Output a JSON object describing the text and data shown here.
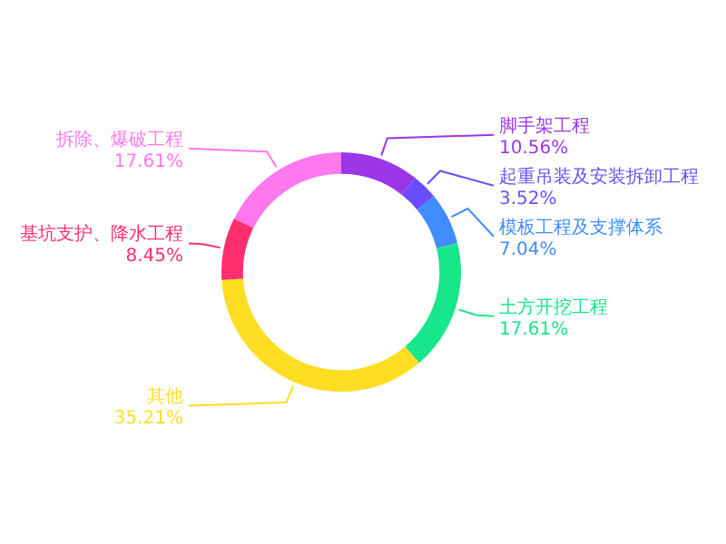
{
  "chart_data": {
    "type": "donut",
    "categories": [
      "脚手架工程",
      "起重吊装及安装拆卸工程",
      "模板工程及支撑体系",
      "土方开挖工程",
      "其他",
      "基坑支护、降水工程",
      "拆除、爆破工程"
    ],
    "values": [
      10.56,
      3.52,
      7.04,
      17.61,
      35.21,
      8.45,
      17.61
    ],
    "colors": [
      "#9b35e8",
      "#6b4dff",
      "#3f8cff",
      "#17e68b",
      "#ffdd22",
      "#ff2e6e",
      "#ff78ee"
    ],
    "value_labels": [
      "10.56%",
      "3.52%",
      "7.04%",
      "17.61%",
      "35.21%",
      "8.45%",
      "17.61%"
    ]
  }
}
